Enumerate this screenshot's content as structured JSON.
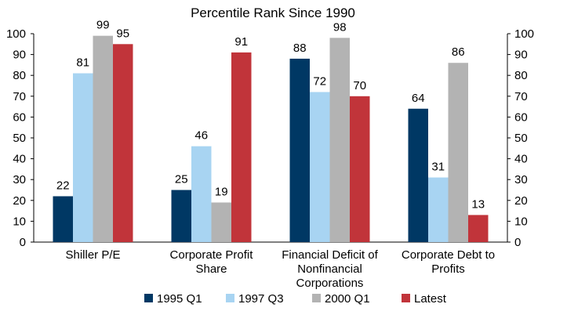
{
  "chart_data": {
    "type": "bar",
    "title": "Percentile Rank Since 1990",
    "categories": [
      [
        "Shiller P/E"
      ],
      [
        "Corporate Profit",
        "Share"
      ],
      [
        "Financial Deficit of",
        "Nonfinancial",
        "Corporations"
      ],
      [
        "Corporate Debt to",
        "Profits"
      ]
    ],
    "series": [
      {
        "name": "1995 Q1",
        "color": "#003864",
        "values": [
          22,
          25,
          88,
          64
        ]
      },
      {
        "name": "1997 Q3",
        "color": "#a8d4f2",
        "values": [
          81,
          46,
          72,
          31
        ]
      },
      {
        "name": "2000 Q1",
        "color": "#b3b3b3",
        "values": [
          99,
          19,
          98,
          86
        ]
      },
      {
        "name": "Latest",
        "color": "#c1343a",
        "values": [
          95,
          91,
          70,
          13
        ]
      }
    ],
    "ylim": [
      0,
      100
    ],
    "yticks": [
      0,
      10,
      20,
      30,
      40,
      50,
      60,
      70,
      80,
      90,
      100
    ],
    "right_axis": true,
    "legend_position": "bottom",
    "grid": false
  }
}
